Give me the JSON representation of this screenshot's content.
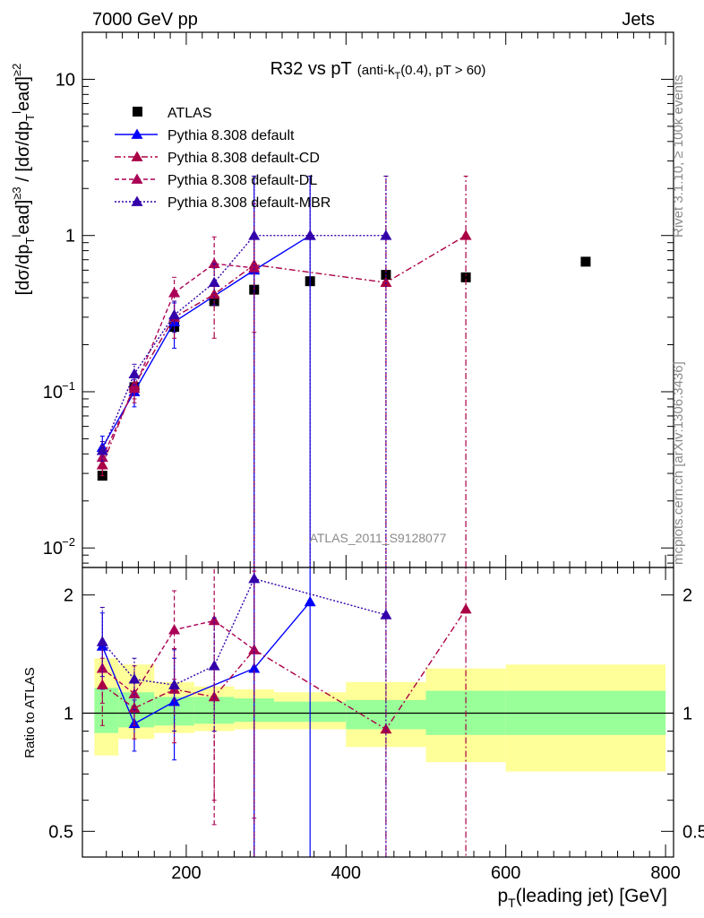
{
  "header": {
    "left": "7000 GeV pp",
    "right": "Jets"
  },
  "side_labels": {
    "rivet": "Rivet 3.1.10, ≥ 100k events",
    "mcplots": "mcplots.cern.ch [arXiv:1306.3436]"
  },
  "watermark": "ATLAS_2011_S9128077",
  "chart_data": [
    {
      "type": "scatter",
      "panel": "main",
      "title_main": "R32 vs pT",
      "title_sub": "(anti-k",
      "title_sub_index": "T",
      "title_sub_tail": "(0.4), pT > 60)",
      "ylabel": "[dσ/dp_T^lead]^{≥3} / [dσ/dp_T^lead]^{≥2}",
      "ylabel_parts": {
        "open": "[dσ/dp",
        "sub": "T",
        "sup_l": "l",
        "ead": "ead]",
        "sup3": "≥3",
        "mid": " / [dσ/dp",
        "sup2": "≥2"
      },
      "yscale": "log",
      "xlim": [
        70,
        810
      ],
      "ylim": [
        0.0075,
        20
      ],
      "yticks": [
        {
          "v": 0.01,
          "base": "10",
          "exp": "−2"
        },
        {
          "v": 0.1,
          "base": "10",
          "exp": "−1"
        },
        {
          "v": 1,
          "base": "1",
          "exp": ""
        },
        {
          "v": 10,
          "base": "10",
          "exp": ""
        }
      ],
      "legend_position": "top-left",
      "series": [
        {
          "name": "ATLAS",
          "marker": "square",
          "color": "#000000",
          "line": "none",
          "x": [
            95,
            135,
            185,
            235,
            285,
            355,
            450,
            550,
            700
          ],
          "y": [
            0.029,
            0.107,
            0.26,
            0.38,
            0.45,
            0.51,
            0.56,
            0.54,
            0.68
          ],
          "ylo": [
            0.028,
            0.104,
            0.255,
            0.372,
            0.44,
            0.5,
            0.55,
            0.53,
            0.665
          ],
          "yhi": [
            0.03,
            0.11,
            0.265,
            0.388,
            0.46,
            0.52,
            0.57,
            0.55,
            0.695
          ]
        },
        {
          "name": "Pythia 8.308 default",
          "marker": "triangle",
          "color": "#0000ff",
          "line": "solid",
          "x": [
            95,
            135,
            185,
            285,
            355
          ],
          "y": [
            0.044,
            0.1,
            0.28,
            0.6,
            1.0
          ],
          "ylo": [
            0.038,
            0.08,
            0.19,
            0.0075,
            0.0075
          ],
          "yhi": [
            0.052,
            0.12,
            0.37,
            2.4,
            2.4
          ]
        },
        {
          "name": "Pythia 8.308 default-CD",
          "marker": "triangle",
          "color": "#aa0044",
          "line": "dashdot",
          "x": [
            95,
            135,
            185,
            235,
            285,
            450,
            550
          ],
          "y": [
            0.034,
            0.11,
            0.3,
            0.42,
            0.65,
            0.5,
            1.0
          ],
          "ylo": [
            0.029,
            0.09,
            0.22,
            0.22,
            0.0075,
            0.0075,
            0.0075
          ],
          "yhi": [
            0.04,
            0.13,
            0.38,
            0.62,
            1.6,
            2.4,
            2.4
          ]
        },
        {
          "name": "Pythia 8.308 default-DL",
          "marker": "triangle",
          "color": "#aa0055",
          "line": "dashed",
          "x": [
            95,
            135,
            185,
            235,
            285
          ],
          "y": [
            0.038,
            0.105,
            0.43,
            0.66,
            0.62
          ],
          "ylo": [
            0.032,
            0.085,
            0.32,
            0.36,
            0.24
          ],
          "yhi": [
            0.045,
            0.125,
            0.54,
            0.98,
            1.0
          ]
        },
        {
          "name": "Pythia 8.308 default-MBR",
          "marker": "triangle",
          "color": "#3300aa",
          "line": "dotted",
          "x": [
            95,
            135,
            185,
            235,
            285,
            355,
            450
          ],
          "y": [
            0.042,
            0.13,
            0.31,
            0.5,
            1.0,
            1.0,
            1.0
          ],
          "ylo": [
            0.036,
            0.11,
            0.24,
            0.36,
            0.0075,
            0.0075,
            0.0075
          ],
          "yhi": [
            0.048,
            0.15,
            0.38,
            0.66,
            2.4,
            2.4,
            2.4
          ]
        }
      ]
    },
    {
      "type": "scatter",
      "panel": "ratio",
      "ylabel": "Ratio to ATLAS",
      "xlabel": "p_T(leading jet) [GeV]",
      "xlabel_parts": {
        "p": "p",
        "sub": "T",
        "rest": "(leading jet) [GeV]"
      },
      "yscale": "log",
      "xlim": [
        70,
        810
      ],
      "ylim": [
        0.43,
        2.35
      ],
      "xticks": [
        200,
        400,
        600,
        800
      ],
      "yticks": [
        0.5,
        1,
        2
      ],
      "reference_line": 1,
      "bands": [
        {
          "xlo": 85,
          "xhi": 115,
          "g_lo": 0.89,
          "g_hi": 1.16,
          "y_lo": 0.78,
          "y_hi": 1.38
        },
        {
          "xlo": 115,
          "xhi": 160,
          "g_lo": 0.92,
          "g_hi": 1.13,
          "y_lo": 0.86,
          "y_hi": 1.33
        },
        {
          "xlo": 160,
          "xhi": 210,
          "g_lo": 0.93,
          "g_hi": 1.1,
          "y_lo": 0.89,
          "y_hi": 1.2
        },
        {
          "xlo": 210,
          "xhi": 260,
          "g_lo": 0.94,
          "g_hi": 1.1,
          "y_lo": 0.9,
          "y_hi": 1.17
        },
        {
          "xlo": 260,
          "xhi": 310,
          "g_lo": 0.95,
          "g_hi": 1.09,
          "y_lo": 0.91,
          "y_hi": 1.15
        },
        {
          "xlo": 310,
          "xhi": 400,
          "g_lo": 0.95,
          "g_hi": 1.07,
          "y_lo": 0.91,
          "y_hi": 1.13
        },
        {
          "xlo": 400,
          "xhi": 500,
          "g_lo": 0.91,
          "g_hi": 1.08,
          "y_lo": 0.82,
          "y_hi": 1.2
        },
        {
          "xlo": 500,
          "xhi": 600,
          "g_lo": 0.88,
          "g_hi": 1.14,
          "y_lo": 0.75,
          "y_hi": 1.3
        },
        {
          "xlo": 600,
          "xhi": 800,
          "g_lo": 0.88,
          "g_hi": 1.14,
          "y_lo": 0.71,
          "y_hi": 1.33
        }
      ],
      "series": [
        {
          "name": "Pythia 8.308 default",
          "color": "#0000ff",
          "line": "solid",
          "x": [
            95,
            135,
            185,
            285,
            355
          ],
          "y": [
            1.48,
            0.94,
            1.07,
            1.3,
            1.92
          ],
          "ylo": [
            1.15,
            0.8,
            0.76,
            0.3,
            0.3
          ],
          "yhi": [
            1.8,
            1.08,
            1.38,
            3,
            3
          ]
        },
        {
          "name": "Pythia 8.308 default-CD",
          "color": "#aa0044",
          "line": "dashdot",
          "x": [
            95,
            135,
            185,
            235,
            285,
            450,
            550
          ],
          "y": [
            1.18,
            1.03,
            1.15,
            1.1,
            1.45,
            0.91,
            1.84
          ],
          "ylo": [
            0.93,
            0.86,
            0.84,
            0.6,
            0.3,
            0.3,
            0.3
          ],
          "yhi": [
            1.38,
            1.2,
            1.46,
            1.7,
            3,
            3,
            3
          ]
        },
        {
          "name": "Pythia 8.308 default-DL",
          "color": "#aa0055",
          "line": "dashed",
          "x": [
            95,
            135,
            185,
            235,
            285
          ],
          "y": [
            1.3,
            1.12,
            1.63,
            1.72,
            1.45
          ],
          "ylo": [
            1.06,
            0.93,
            1.22,
            0.52,
            0.54
          ],
          "yhi": [
            1.52,
            1.32,
            2.05,
            2.48,
            2.3
          ]
        },
        {
          "name": "Pythia 8.308 default-MBR",
          "color": "#3300aa",
          "line": "dotted",
          "x": [
            95,
            135,
            185,
            235,
            285,
            450
          ],
          "y": [
            1.52,
            1.22,
            1.18,
            1.32,
            2.2,
            1.78
          ],
          "ylo": [
            1.24,
            1.02,
            0.9,
            0.9,
            0.3,
            0.3
          ],
          "yhi": [
            1.86,
            1.38,
            1.45,
            1.75,
            3,
            3
          ]
        }
      ]
    }
  ]
}
